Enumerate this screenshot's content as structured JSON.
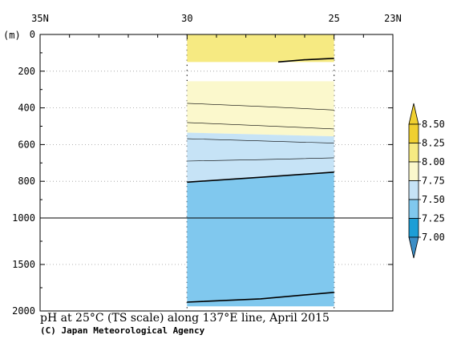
{
  "chart_data": {
    "type": "heatmap",
    "title": "pH at 25°C (TS scale) along 137°E line, April 2015",
    "credit": "(C) Japan Meteorological Agency",
    "x_axis": {
      "ticks": [
        "35N",
        "30",
        "25",
        "23N"
      ],
      "tick_lat": [
        35,
        30,
        25,
        23
      ],
      "range": [
        35,
        23
      ]
    },
    "y_axis": {
      "unit_label": "(m)",
      "upper_ticks": [
        "0",
        "200",
        "400",
        "600",
        "800",
        "1000"
      ],
      "upper_values": [
        0,
        200,
        400,
        600,
        800,
        1000
      ],
      "lower_ticks": [
        "1500",
        "2000"
      ],
      "lower_values": [
        1500,
        2000
      ],
      "scale_break": 1000
    },
    "colorbar": {
      "labels": [
        "8.50",
        "8.25",
        "8.00",
        "7.75",
        "7.50",
        "7.25",
        "7.00"
      ],
      "levels": [
        8.5,
        8.25,
        8.0,
        7.75,
        7.5,
        7.25,
        7.0
      ],
      "colors": {
        "above_8_25": "#f0d030",
        "8_00_to_8_25": "#f6ea82",
        "7_75_to_8_00": "#fbf8cc",
        "7_50_to_7_75": "#c6e3f6",
        "7_25_to_7_50": "#80c8ee",
        "7_00_to_7_25": "#1c9ed6",
        "below_7_00": "#3c8ec6"
      }
    },
    "data_extent": {
      "lat": [
        30,
        25
      ],
      "depth": [
        0,
        1950
      ]
    },
    "bands": [
      {
        "range": "8.00–8.25",
        "depth_top": [
          0,
          0
        ],
        "depth_bottom": [
          150,
          150
        ]
      },
      {
        "range": "7.75–8.00",
        "depth_top": [
          255,
          255
        ],
        "depth_bottom": [
          535,
          555
        ]
      },
      {
        "range": "7.50–7.75",
        "depth_top": [
          535,
          555
        ],
        "depth_bottom": [
          805,
          750
        ]
      },
      {
        "range": "7.25–7.50",
        "depth_top": [
          805,
          750
        ],
        "depth_bottom": [
          1950,
          1950
        ]
      }
    ],
    "contours": [
      {
        "level": 8.25,
        "bold": true,
        "lat": [
          26.9,
          26.0,
          25.0
        ],
        "depth": [
          150,
          138,
          130
        ]
      },
      {
        "level": 7.85,
        "bold": false,
        "lat": [
          30,
          27.5,
          25
        ],
        "depth": [
          375,
          392,
          412
        ]
      },
      {
        "level": 7.8,
        "bold": false,
        "lat": [
          30,
          27.5,
          25
        ],
        "depth": [
          480,
          497,
          515
        ]
      },
      {
        "level": 7.7,
        "bold": false,
        "lat": [
          30,
          27.5,
          25
        ],
        "depth": [
          568,
          580,
          592
        ]
      },
      {
        "level": 7.6,
        "bold": false,
        "lat": [
          30,
          27.5,
          25
        ],
        "depth": [
          690,
          682,
          672
        ]
      },
      {
        "level": 7.5,
        "bold": true,
        "lat": [
          30,
          27.5,
          25
        ],
        "depth": [
          805,
          778,
          750
        ]
      },
      {
        "level": 7.5,
        "bold": true,
        "lat": [
          30,
          27.5,
          25
        ],
        "depth": [
          1905,
          1870,
          1800
        ]
      }
    ],
    "grid": "dotted"
  }
}
